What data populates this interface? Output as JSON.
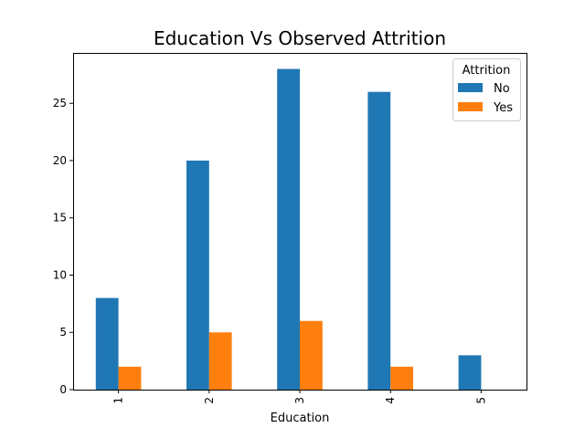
{
  "chart_data": {
    "type": "bar",
    "title": "Education Vs Observed Attrition",
    "xlabel": "Education",
    "ylabel": "",
    "categories": [
      "1",
      "2",
      "3",
      "4",
      "5"
    ],
    "series": [
      {
        "name": "No",
        "values": [
          8,
          20,
          28,
          26,
          3
        ],
        "color": "#1f77b4"
      },
      {
        "name": "Yes",
        "values": [
          2,
          5,
          6,
          2,
          0
        ],
        "color": "#ff7f0e"
      }
    ],
    "ylim": [
      0,
      29.4
    ],
    "yticks": [
      0,
      5,
      10,
      15,
      20,
      25
    ],
    "grid": false,
    "legend": {
      "title": "Attrition",
      "position": "top-right"
    }
  }
}
